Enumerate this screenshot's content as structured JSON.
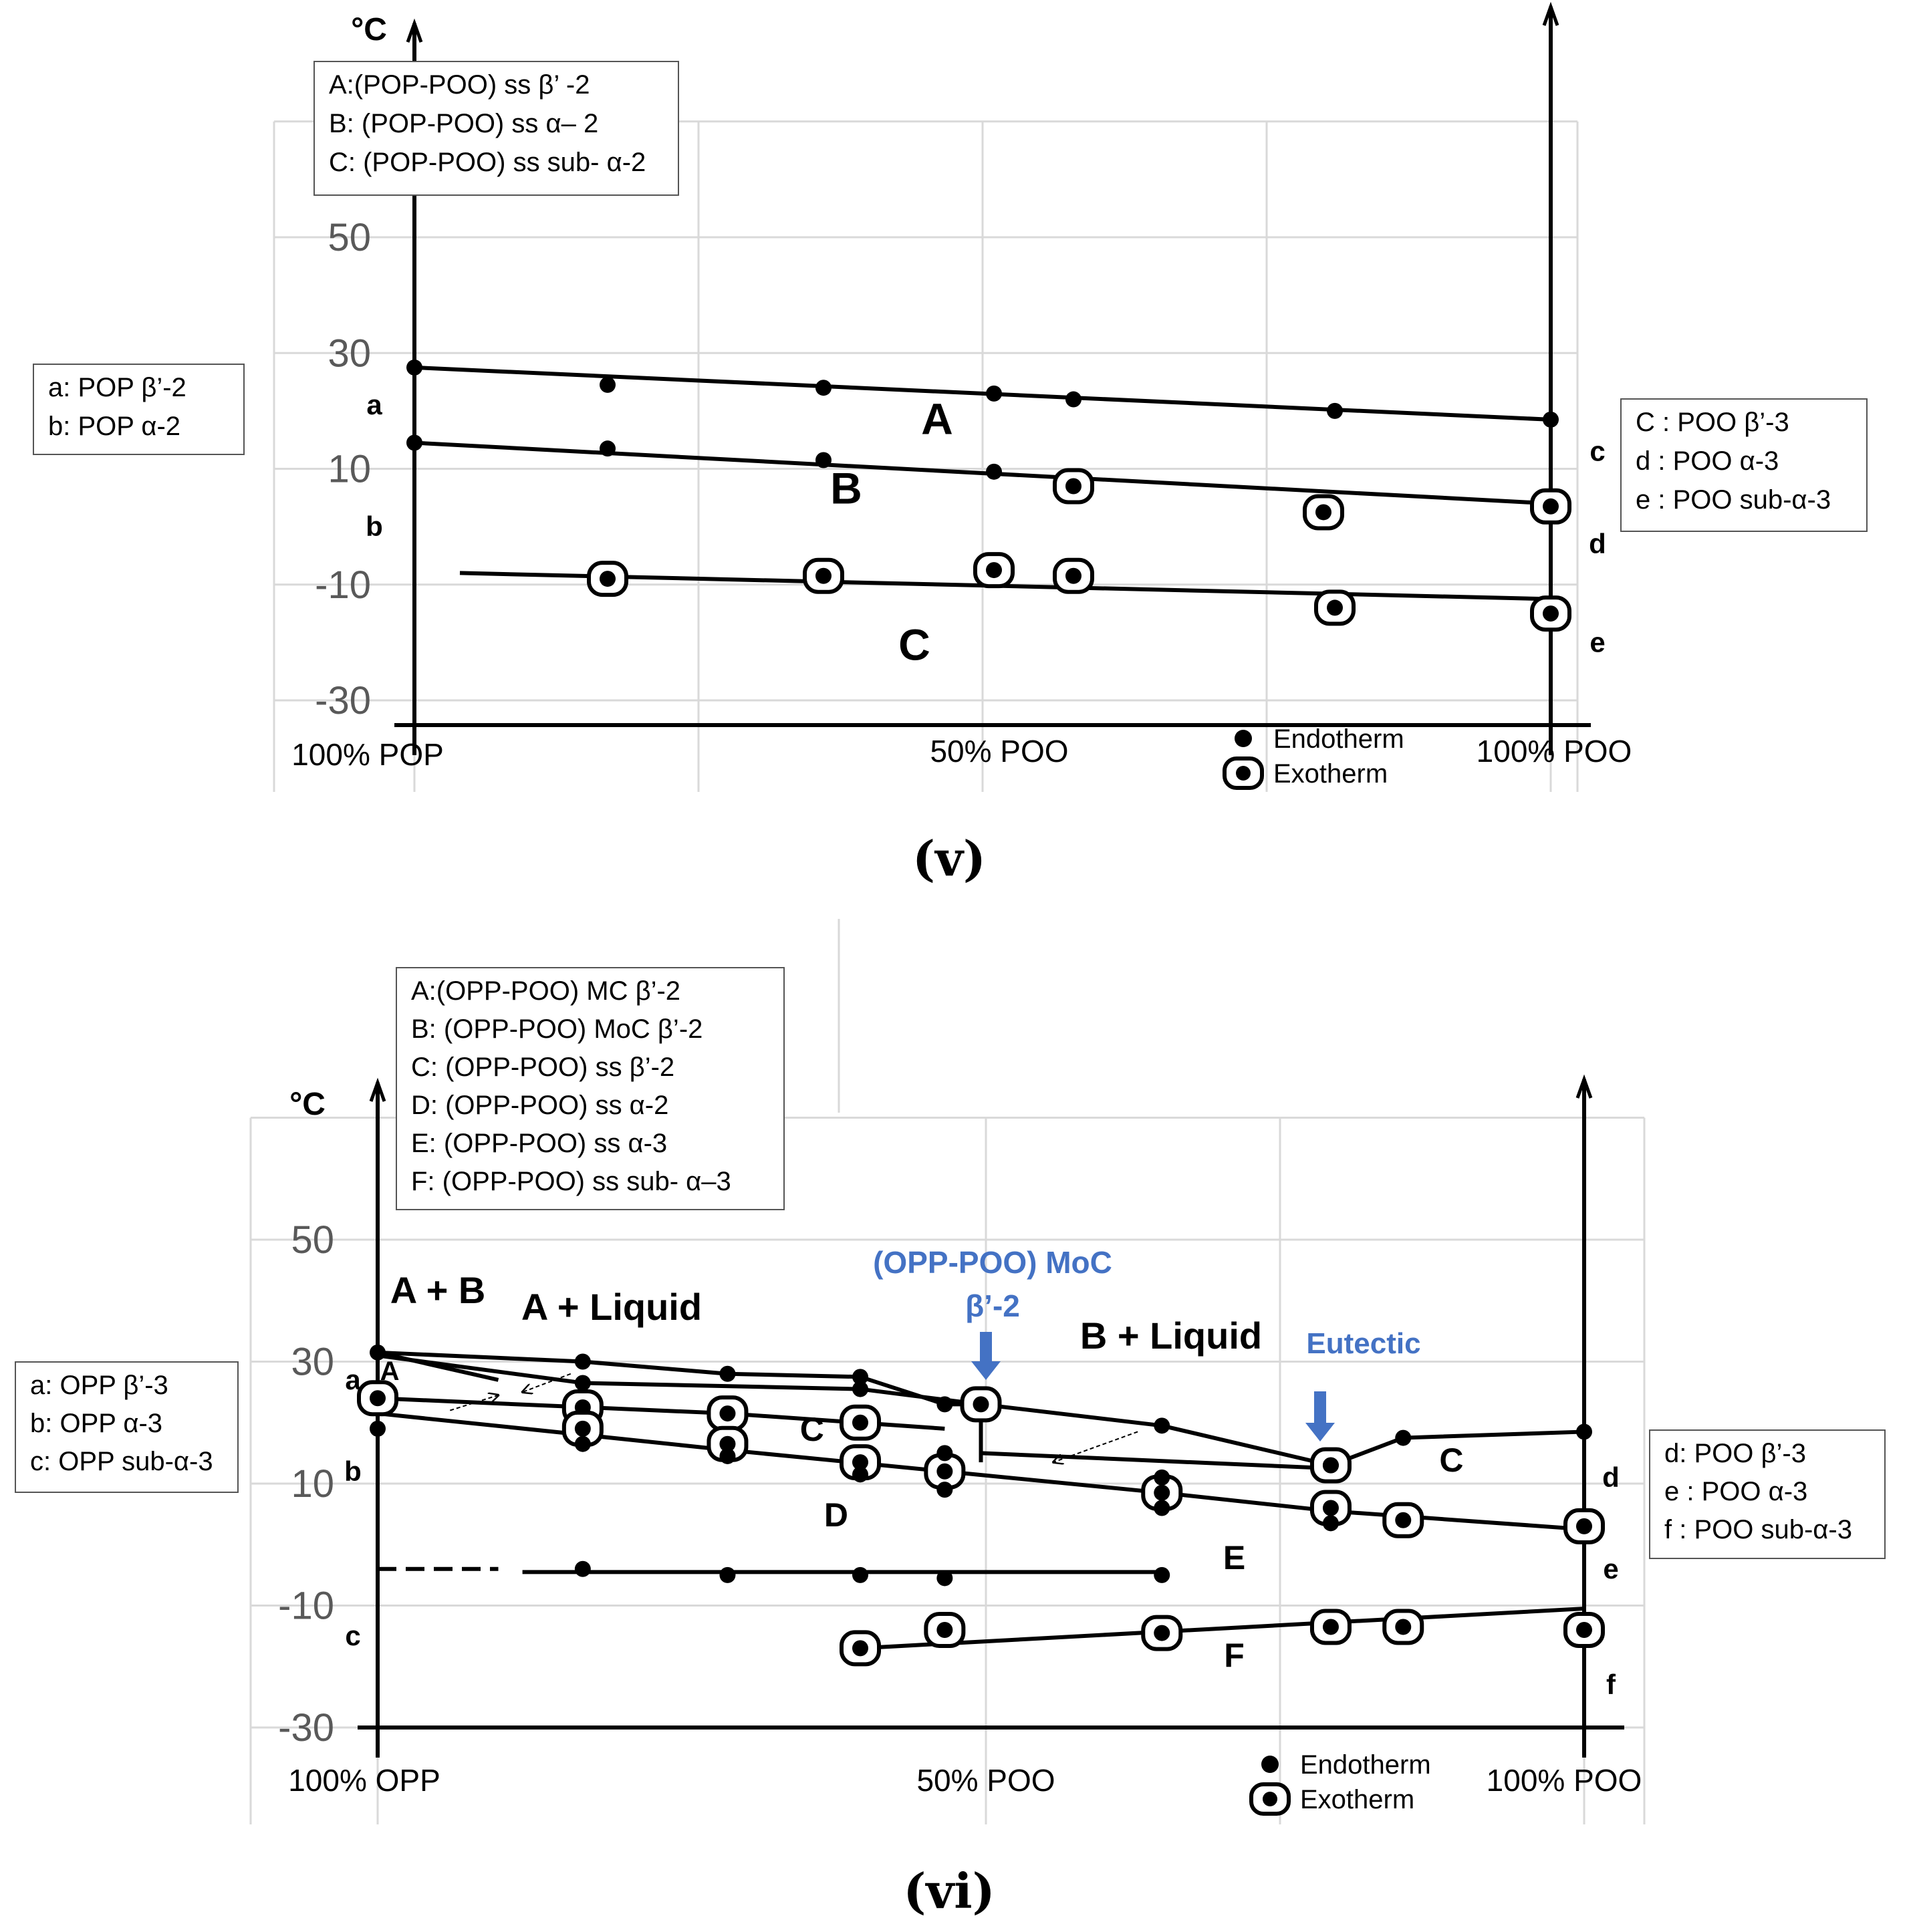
{
  "colors": {
    "ink": "#000000",
    "grid": "#d9d9d9",
    "tick": "#595959",
    "blue": "#4472c4"
  },
  "chart_data": [
    {
      "id": "v",
      "type": "scatter",
      "caption": "(v)",
      "ylabel": "°C",
      "ylim": [
        -30,
        70
      ],
      "yticks": [
        -30,
        -10,
        10,
        30,
        50
      ],
      "x_tick_labels": [
        "100% POP",
        "50% POO",
        "100% POO"
      ],
      "grid": true,
      "legend": {
        "endotherm": "Endotherm",
        "exotherm": "Exotherm"
      },
      "phase_box": [
        "A:(POP-POO) ss β’ -2",
        "B: (POP-POO) ss α– 2",
        "C: (POP-POO) ss sub- α-2"
      ],
      "left_box": [
        "a: POP β’-2",
        "b: POP α-2"
      ],
      "right_box": [
        "C : POO β’-3",
        "d : POO α-3",
        "e : POO sub-α-3"
      ],
      "left_letters": [
        {
          "t": "a",
          "y": 21
        },
        {
          "t": "b",
          "y": 0
        }
      ],
      "right_letters": [
        {
          "t": "c",
          "y": 13
        },
        {
          "t": "d",
          "y": -3
        },
        {
          "t": "e",
          "y": -20
        }
      ],
      "region_labels": [
        {
          "t": "A",
          "x": 46,
          "y": 16
        },
        {
          "t": "B",
          "x": 38,
          "y": 4
        },
        {
          "t": "C",
          "x": 44,
          "y": -23
        }
      ],
      "lines": [
        [
          [
            0,
            27.5
          ],
          [
            100,
            18.5
          ]
        ],
        [
          [
            0,
            14.5
          ],
          [
            100,
            4
          ]
        ],
        [
          [
            4,
            -8
          ],
          [
            100,
            -12.5
          ]
        ]
      ],
      "endotherms": [
        [
          0,
          27.5
        ],
        [
          17,
          24.5
        ],
        [
          36,
          24
        ],
        [
          51,
          23
        ],
        [
          58,
          22
        ],
        [
          81,
          20
        ],
        [
          100,
          18.5
        ],
        [
          0,
          14.5
        ],
        [
          17,
          13.5
        ],
        [
          36,
          11.5
        ],
        [
          51,
          9.5
        ]
      ],
      "exotherms": [
        [
          58,
          7
        ],
        [
          80,
          2.5
        ],
        [
          100,
          3.5
        ],
        [
          17,
          -9
        ],
        [
          36,
          -8.5
        ],
        [
          51,
          -7.5
        ],
        [
          58,
          -8.5
        ],
        [
          81,
          -14
        ],
        [
          100,
          -15
        ]
      ]
    },
    {
      "id": "vi",
      "type": "scatter",
      "caption": "(vi)",
      "ylabel": "°C",
      "ylim": [
        -30,
        70
      ],
      "yticks": [
        -30,
        -10,
        10,
        30,
        50
      ],
      "x_tick_labels": [
        "100% OPP",
        "50% POO",
        "100% POO"
      ],
      "grid": true,
      "legend": {
        "endotherm": "Endotherm",
        "exotherm": "Exotherm"
      },
      "phase_box": [
        "A:(OPP-POO) MC β’-2",
        "B: (OPP-POO) MoC β’-2",
        "C: (OPP-POO) ss β’-2",
        "D: (OPP-POO) ss α-2",
        "E: (OPP-POO) ss α-3",
        "F: (OPP-POO) ss sub- α–3"
      ],
      "left_box": [
        "a: OPP β’-3",
        "b: OPP α-3",
        "c: OPP sub-α-3"
      ],
      "right_box": [
        "d: POO β’-3",
        "e : POO α-3",
        "f : POO sub-α-3"
      ],
      "left_letters": [
        {
          "t": "a",
          "y": 27
        },
        {
          "t": "b",
          "y": 12
        },
        {
          "t": "c",
          "y": -15
        }
      ],
      "right_letters": [
        {
          "t": "d",
          "y": 11
        },
        {
          "t": "e",
          "y": -4
        },
        {
          "t": "f",
          "y": -23
        }
      ],
      "region_labels": [
        {
          "t": "A",
          "x": 1,
          "y": 27,
          "size": 40
        },
        {
          "t": "C",
          "x": 36,
          "y": 17,
          "size": 50
        },
        {
          "t": "D",
          "x": 38,
          "y": 3,
          "size": 50
        },
        {
          "t": "E",
          "x": 71,
          "y": -4,
          "size": 50
        },
        {
          "t": "F",
          "x": 71,
          "y": -20,
          "size": 50
        },
        {
          "t": "C",
          "x": 89,
          "y": 12,
          "size": 50
        }
      ],
      "annotations": [
        "A + B",
        "A + Liquid",
        "B + Liquid"
      ],
      "moc_label": [
        "(OPP-POO) MoC",
        "β’-2"
      ],
      "eutectic_label": "Eutectic",
      "lines": [
        [
          [
            0,
            31.5
          ],
          [
            17,
            30
          ],
          [
            29,
            28
          ],
          [
            40,
            27.5
          ],
          [
            47,
            23
          ],
          [
            50,
            23
          ],
          [
            65,
            19.5
          ],
          [
            79,
            13
          ],
          [
            85,
            17.5
          ],
          [
            100,
            18.5
          ]
        ],
        [
          [
            0,
            31.5
          ],
          [
            10,
            27
          ]
        ],
        [
          [
            0,
            31
          ],
          [
            17,
            26.5
          ],
          [
            40,
            25.5
          ],
          [
            50,
            23
          ]
        ],
        [
          [
            0,
            24
          ],
          [
            29,
            21.5
          ],
          [
            47,
            19
          ]
        ],
        [
          [
            0,
            21.5
          ],
          [
            17,
            18
          ],
          [
            29,
            15.5
          ],
          [
            47,
            12
          ],
          [
            65,
            8.5
          ],
          [
            79,
            5.5
          ],
          [
            100,
            2.5
          ]
        ],
        [
          [
            50,
            15
          ],
          [
            79,
            12.5
          ]
        ],
        [
          [
            50,
            23
          ],
          [
            50,
            13.5
          ]
        ],
        [
          [
            12,
            -4.5
          ],
          [
            65,
            -4.5
          ]
        ],
        [
          [
            40,
            -17
          ],
          [
            100,
            -10.5
          ]
        ]
      ],
      "dashed_lines": [
        [
          [
            0,
            -4
          ],
          [
            10,
            -4
          ]
        ]
      ],
      "arrows": [
        {
          "from": [
            6,
            22
          ],
          "to": [
            10,
            24.5
          ]
        },
        {
          "from": [
            16,
            28
          ],
          "to": [
            12,
            25
          ]
        },
        {
          "from": [
            63,
            18.5
          ],
          "to": [
            56,
            13.5
          ]
        }
      ],
      "endotherms": [
        [
          0,
          31.5
        ],
        [
          0,
          19
        ],
        [
          17,
          30
        ],
        [
          17,
          26.5
        ],
        [
          17,
          16.5
        ],
        [
          29,
          28
        ],
        [
          29,
          14.5
        ],
        [
          40,
          27.5
        ],
        [
          40,
          25.5
        ],
        [
          40,
          11.5
        ],
        [
          47,
          23
        ],
        [
          47,
          15
        ],
        [
          47,
          9
        ],
        [
          65,
          19.5
        ],
        [
          65,
          11
        ],
        [
          65,
          6
        ],
        [
          79,
          13
        ],
        [
          79,
          3.5
        ],
        [
          85,
          17.5
        ],
        [
          100,
          18.5
        ],
        [
          17,
          -4
        ],
        [
          29,
          -5
        ],
        [
          40,
          -5
        ],
        [
          47,
          -5.5
        ],
        [
          65,
          -5
        ]
      ],
      "exotherms": [
        [
          0,
          24
        ],
        [
          17,
          22.5
        ],
        [
          17,
          19
        ],
        [
          29,
          21.5
        ],
        [
          29,
          16.5
        ],
        [
          40,
          20
        ],
        [
          40,
          13.5
        ],
        [
          47,
          12
        ],
        [
          50,
          23
        ],
        [
          65,
          8.5
        ],
        [
          79,
          13
        ],
        [
          79,
          6
        ],
        [
          85,
          4
        ],
        [
          100,
          3
        ],
        [
          40,
          -17
        ],
        [
          47,
          -14
        ],
        [
          65,
          -14.5
        ],
        [
          79,
          -13.5
        ],
        [
          85,
          -13.5
        ],
        [
          100,
          -14
        ]
      ]
    }
  ]
}
